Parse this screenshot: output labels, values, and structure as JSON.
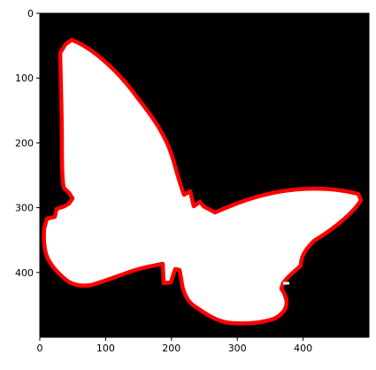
{
  "image": {
    "background_color": "#000000",
    "silhouette_color": "#ffffff",
    "outline_color": "#ff0000",
    "subject": "butterfly-silhouette"
  },
  "axes": {
    "x_range": [
      0,
      500
    ],
    "y_range": [
      500,
      0
    ],
    "x_ticks": [
      {
        "value": 0,
        "label": "0"
      },
      {
        "value": 100,
        "label": "100"
      },
      {
        "value": 200,
        "label": "200"
      },
      {
        "value": 300,
        "label": "300"
      },
      {
        "value": 400,
        "label": "400"
      }
    ],
    "y_ticks": [
      {
        "value": 0,
        "label": "0"
      },
      {
        "value": 100,
        "label": "100"
      },
      {
        "value": 200,
        "label": "200"
      },
      {
        "value": 300,
        "label": "300"
      },
      {
        "value": 400,
        "label": "400"
      }
    ]
  }
}
